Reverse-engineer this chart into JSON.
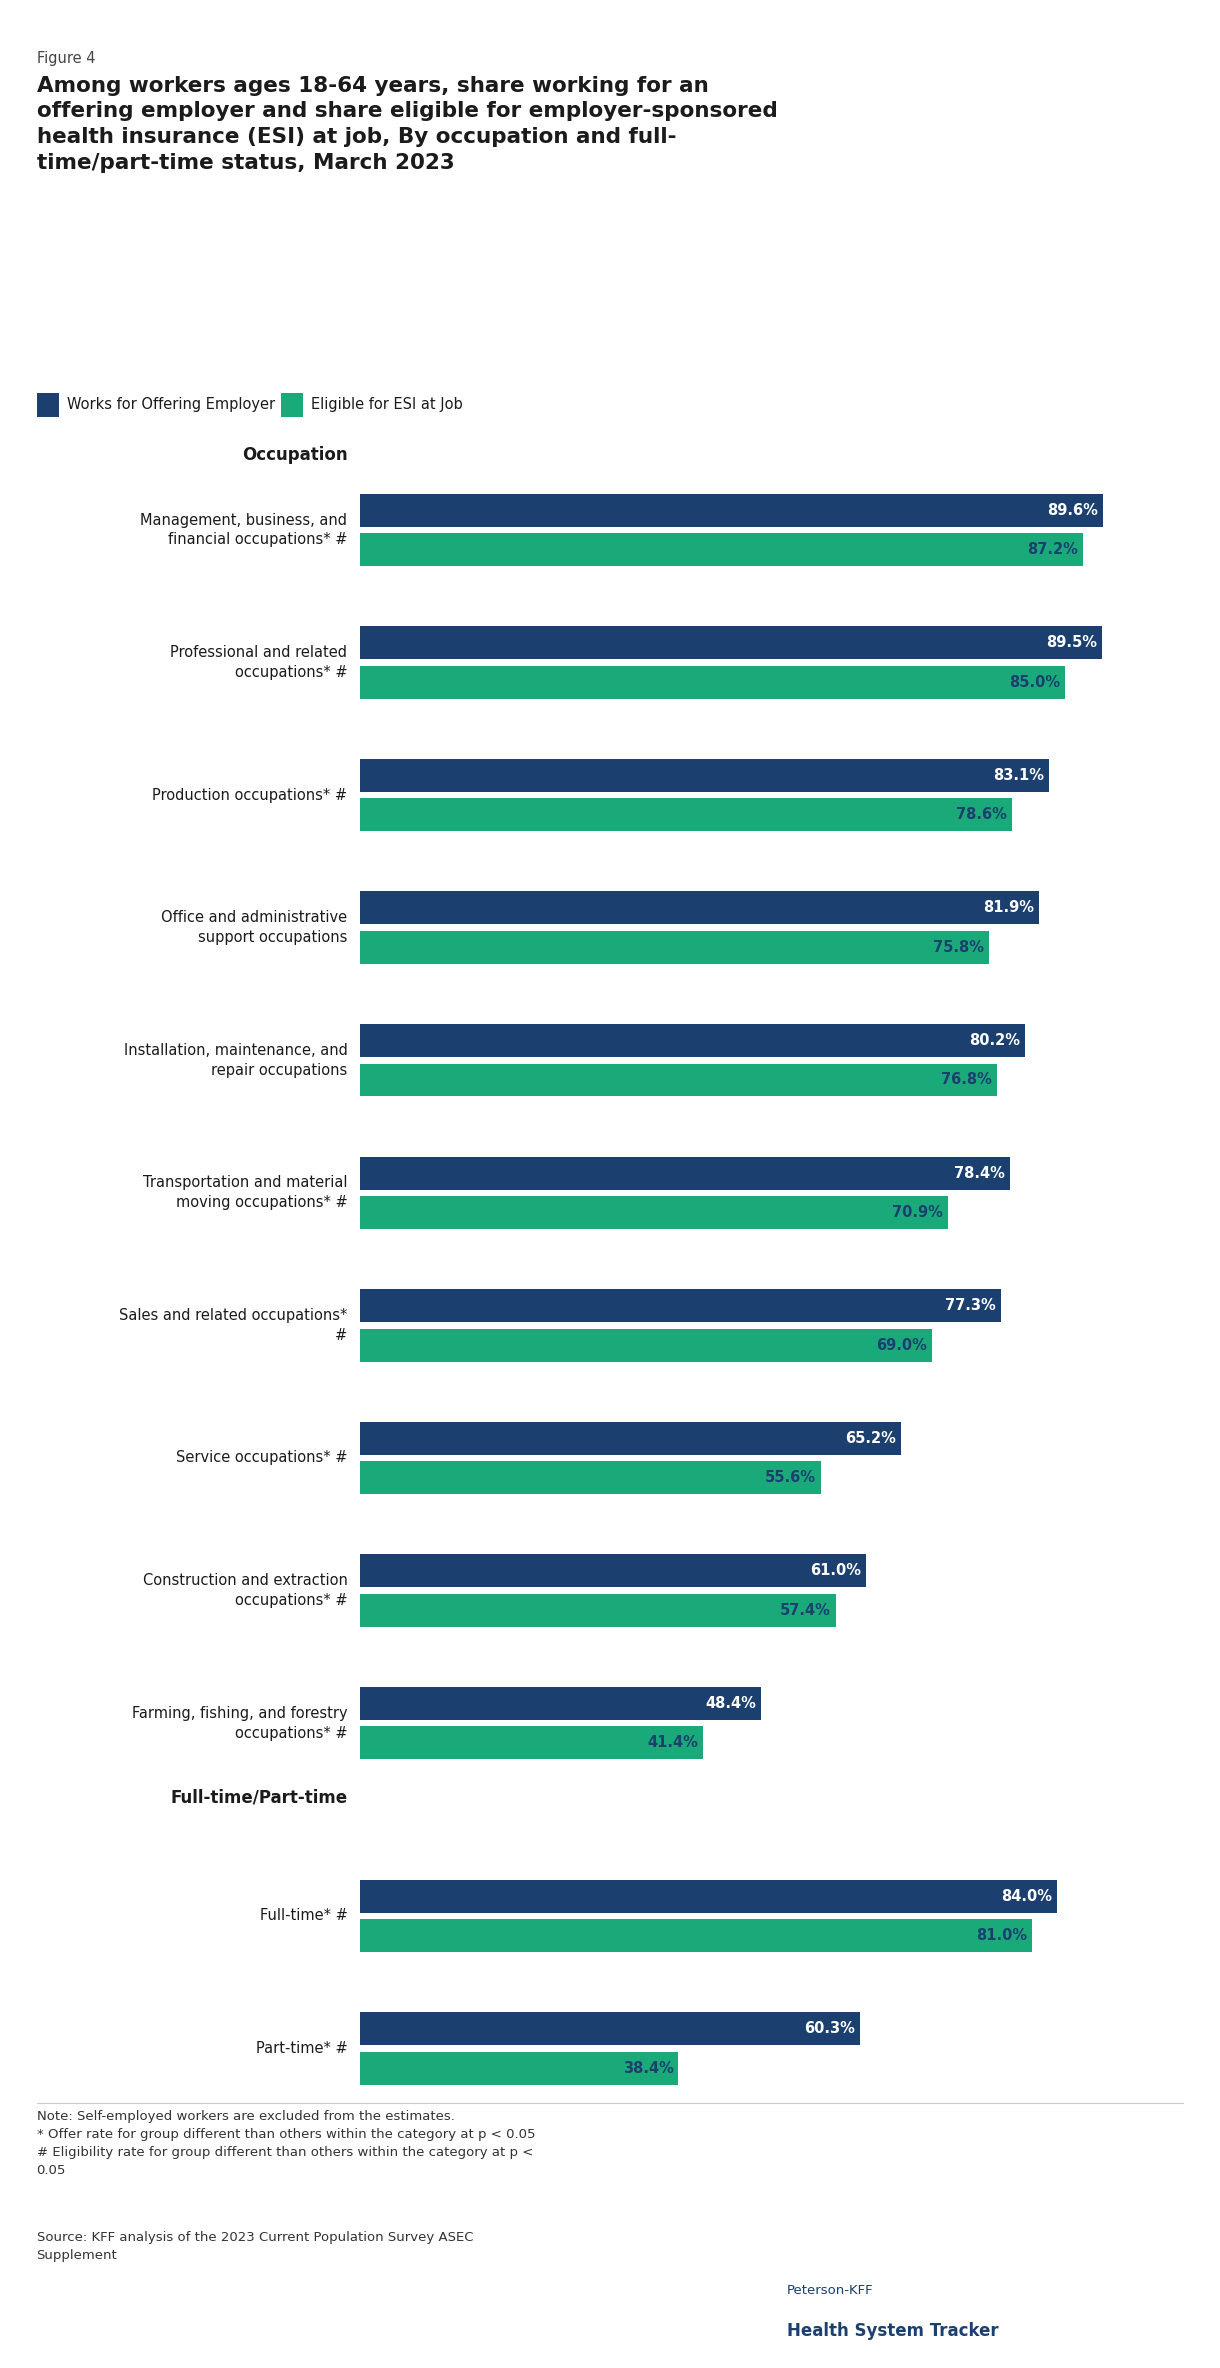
{
  "figure_label": "Figure 4",
  "title_line1": "Among workers ages 18-64 years, share working for an",
  "title_line2": "offering employer and share eligible for employer-sponsored",
  "title_line3": "health insurance (ESI) at job, By occupation and full-",
  "title_line4": "time/part-time status, March 2023",
  "legend_labels": [
    "Works for Offering Employer",
    "Eligible for ESI at Job"
  ],
  "offering_color": "#1b3f6e",
  "eligible_color": "#1aaa7a",
  "categories": [
    "Management, business, and\nfinancial occupations* #",
    "Professional and related\noccupations* #",
    "Production occupations* #",
    "Office and administrative\nsupport occupations",
    "Installation, maintenance, and\nrepair occupations",
    "Transportation and material\nmoving occupations* #",
    "Sales and related occupations*\n#",
    "Service occupations* #",
    "Construction and extraction\noccupations* #",
    "Farming, fishing, and forestry\noccupations* #",
    "Full-time* #",
    "Part-time* #"
  ],
  "offering_values": [
    89.6,
    89.5,
    83.1,
    81.9,
    80.2,
    78.4,
    77.3,
    65.2,
    61.0,
    48.4,
    84.0,
    60.3
  ],
  "eligible_values": [
    87.2,
    85.0,
    78.6,
    75.8,
    76.8,
    70.9,
    69.0,
    55.6,
    57.4,
    41.4,
    81.0,
    38.4
  ],
  "section_break_after": 9,
  "background_color": "#ffffff",
  "note_text": "Note: Self-employed workers are excluded from the estimates.\n* Offer rate for group different than others within the category at p < 0.05\n# Eligibility rate for group different than others within the category at p <\n0.05",
  "source_text": "Source: KFF analysis of the 2023 Current Population Survey ASEC\nSupplement",
  "logo_line1": "Peterson-KFF",
  "logo_line2": "Health System Tracker"
}
